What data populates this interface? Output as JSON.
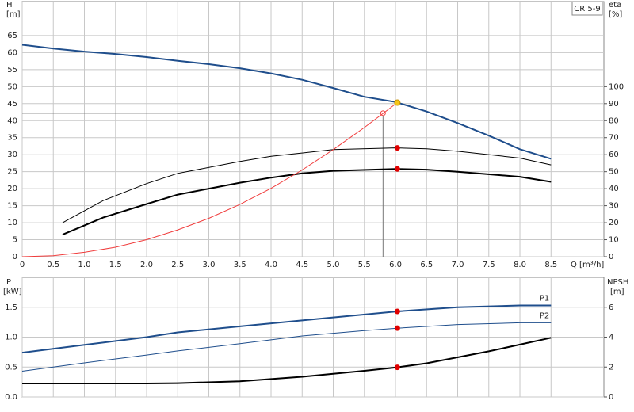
{
  "chart_data": [
    {
      "type": "line",
      "y_label": "H",
      "y_unit": "[m]",
      "y2_label": "eta",
      "y2_unit": "[%]",
      "x_label": "Q [m³/h]",
      "label_box": "CR 5-9",
      "xlim": [
        0,
        9.35
      ],
      "ylim": [
        0,
        75
      ],
      "y2lim": [
        0,
        150
      ],
      "xticks": [
        0,
        0.5,
        {
          "value": 1,
          "label": "1.0"
        },
        1.5,
        {
          "value": 2,
          "label": "2.0"
        },
        2.5,
        {
          "value": 3,
          "label": "3.0"
        },
        3.5,
        {
          "value": 4,
          "label": "4.0"
        },
        4.5,
        {
          "value": 5,
          "label": "5.0"
        },
        5.5,
        {
          "value": 6,
          "label": "6.0"
        },
        6.5,
        {
          "value": 7,
          "label": "7.0"
        },
        7.5,
        {
          "value": 8,
          "label": "8.0"
        },
        8.5
      ],
      "yticks": [
        0,
        5,
        10,
        15,
        20,
        25,
        30,
        35,
        40,
        45,
        50,
        55,
        60,
        65
      ],
      "y2ticks": [
        0,
        10,
        20,
        30,
        40,
        50,
        60,
        70,
        80,
        90,
        100
      ],
      "grid": true,
      "series": [
        {
          "color": "#1f4e8c",
          "width": 2,
          "x": [
            0,
            0.5,
            1,
            1.5,
            2,
            2.5,
            3,
            3.5,
            4,
            4.5,
            5,
            5.5,
            6,
            6.5,
            7,
            7.5,
            8,
            8.5
          ],
          "values": [
            62.3,
            61.2,
            60.3,
            59.6,
            58.7,
            57.6,
            56.6,
            55.4,
            53.9,
            52,
            49.6,
            47,
            45.5,
            42.7,
            39.3,
            35.6,
            31.6,
            28.8
          ]
        },
        {
          "color": "#000000",
          "width": 1,
          "axis": "y2",
          "x": [
            0.65,
            1.3,
            2,
            2.5,
            3.5,
            4,
            5,
            6,
            6.5,
            7,
            8,
            8.5
          ],
          "values": [
            20,
            33,
            43,
            49,
            56,
            59,
            63,
            64,
            63.5,
            62,
            58,
            54
          ]
        },
        {
          "color": "#000000",
          "width": 2,
          "axis": "y2",
          "x": [
            0.65,
            1.3,
            2,
            2.5,
            3,
            3.5,
            4,
            4.5,
            5,
            6,
            6.5,
            7,
            8,
            8.5
          ],
          "values": [
            13,
            23,
            31,
            36.5,
            40,
            43.5,
            46.5,
            49,
            50.5,
            51.6,
            51.2,
            50,
            47,
            44
          ]
        },
        {
          "color": "#f03c3c",
          "width": 1,
          "x": [
            0,
            0.5,
            1,
            1.5,
            2,
            2.5,
            3,
            3.5,
            4,
            4.5,
            5,
            5.5,
            6.03
          ],
          "values": [
            0,
            0.3,
            1.3,
            2.8,
            5,
            7.9,
            11.3,
            15.4,
            20.1,
            25.5,
            31.5,
            38,
            45.3
          ]
        }
      ],
      "points": [
        {
          "x": 6.03,
          "y": 45.3,
          "color": "#f5c518"
        },
        {
          "x": 6.03,
          "y": 64,
          "axis": "y2",
          "color": "#e00000"
        },
        {
          "x": 6.03,
          "y": 51.6,
          "axis": "y2",
          "color": "#e00000"
        }
      ],
      "duty_point": {
        "x": 5.8,
        "y": 42.2
      }
    },
    {
      "type": "line",
      "y_label": "P",
      "y_unit": "[kW]",
      "y2_label": "NPSH",
      "y2_unit": "[m]",
      "xlim": [
        0,
        9.35
      ],
      "ylim": [
        0,
        2
      ],
      "y2lim": [
        0,
        8
      ],
      "xticks": [
        0,
        0.5,
        1,
        1.5,
        2,
        2.5,
        3,
        3.5,
        4,
        4.5,
        5,
        5.5,
        6,
        6.5,
        7,
        7.5,
        8,
        8.5
      ],
      "yticks": [
        {
          "value": 0,
          "label": "0.0"
        },
        0.5,
        {
          "value": 1,
          "label": "1.0"
        },
        1.5
      ],
      "y2ticks": [
        0,
        2,
        4,
        6
      ],
      "grid": true,
      "series": [
        {
          "name": "P1",
          "color": "#1f4e8c",
          "width": 2,
          "x": [
            0,
            1,
            2,
            2.5,
            3.5,
            4.5,
            5,
            6.03,
            7,
            8,
            8.5
          ],
          "values": [
            0.74,
            0.87,
            1.0,
            1.08,
            1.18,
            1.28,
            1.33,
            1.43,
            1.5,
            1.53,
            1.53
          ]
        },
        {
          "name": "P2",
          "color": "#1f4e8c",
          "width": 1,
          "x": [
            0,
            1,
            2,
            2.5,
            3.5,
            4.5,
            5.5,
            6.03,
            7,
            8,
            8.5
          ],
          "values": [
            0.43,
            0.57,
            0.7,
            0.77,
            0.89,
            1.02,
            1.11,
            1.15,
            1.21,
            1.24,
            1.24
          ]
        },
        {
          "color": "#000000",
          "width": 2,
          "axis": "y2",
          "x": [
            0,
            1,
            2,
            2.5,
            3.5,
            4.5,
            5.5,
            6.03,
            6.5,
            7.5,
            8.5
          ],
          "values": [
            0.9,
            0.9,
            0.9,
            0.92,
            1.05,
            1.35,
            1.75,
            1.98,
            2.25,
            3.05,
            3.96
          ]
        }
      ],
      "points": [
        {
          "x": 6.03,
          "y": 1.43,
          "color": "#e00000"
        },
        {
          "x": 6.03,
          "y": 1.15,
          "color": "#e00000"
        },
        {
          "x": 6.03,
          "y": 1.98,
          "axis": "y2",
          "color": "#e00000"
        }
      ]
    }
  ]
}
